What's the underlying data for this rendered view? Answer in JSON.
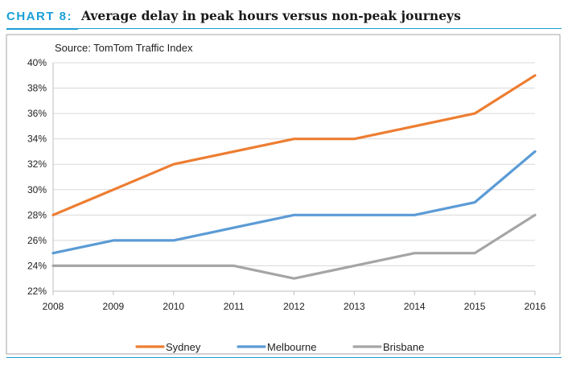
{
  "header": {
    "chart_number": "CHART 8:",
    "title": "Average delay in peak hours versus non-peak journeys"
  },
  "colors": {
    "accent": "#1a9fd6",
    "sydney": "#ed7d31",
    "melbourne": "#5b9bd5",
    "brisbane": "#a5a5a5",
    "frame": "#a6a6a6"
  },
  "chart_data": {
    "type": "line",
    "title": "Average delay in peak hours versus non-peak journeys",
    "source": "Source: TomTom Traffic Index",
    "xlabel": "",
    "ylabel": "",
    "x": [
      "2008",
      "2009",
      "2010",
      "2011",
      "2012",
      "2013",
      "2014",
      "2015",
      "2016"
    ],
    "ylim": [
      22,
      40
    ],
    "y_ticks": [
      22,
      24,
      26,
      28,
      30,
      32,
      34,
      36,
      38,
      40
    ],
    "y_tick_labels": [
      "22%",
      "24%",
      "26%",
      "28%",
      "30%",
      "32%",
      "34%",
      "36%",
      "38%",
      "40%"
    ],
    "grid": true,
    "legend_position": "bottom",
    "series": [
      {
        "name": "Sydney",
        "color": "#ed7d31",
        "values": [
          28,
          30,
          32,
          33,
          34,
          34,
          35,
          36,
          39
        ]
      },
      {
        "name": "Melbourne",
        "color": "#5b9bd5",
        "values": [
          25,
          26,
          26,
          27,
          28,
          28,
          28,
          29,
          33
        ]
      },
      {
        "name": "Brisbane",
        "color": "#a5a5a5",
        "values": [
          24,
          24,
          24,
          24,
          23,
          24,
          25,
          25,
          28
        ]
      }
    ]
  }
}
